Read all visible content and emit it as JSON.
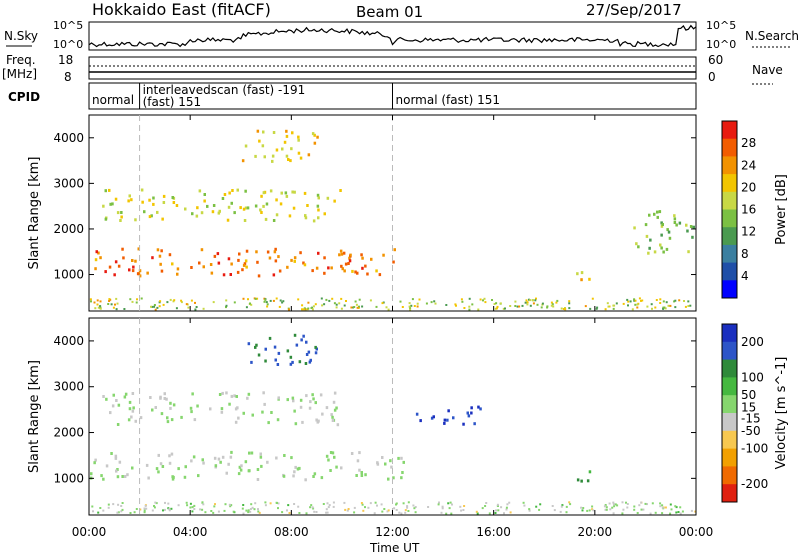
{
  "header": {
    "station": "Hokkaido East (fitACF)",
    "beam": "Beam 01",
    "date": "27/Sep/2017"
  },
  "noise_panel": {
    "left_label": "N.Sky",
    "right_label": "N.Search",
    "left_ticks": [
      "10^5",
      "10^0"
    ],
    "right_ticks": [
      "10^5",
      "10^0"
    ]
  },
  "freq_panel": {
    "left_label": "Freq.",
    "left_unit": "[MHz]",
    "left_ticks": [
      "18",
      "8"
    ],
    "right_label": "Nave",
    "right_ticks": [
      "60",
      "0"
    ]
  },
  "cpid_panel": {
    "label": "CPID",
    "segments": [
      {
        "text": "normal",
        "start": 0.0,
        "end": 2.0
      },
      {
        "text": "interleavedscan (fast) -191",
        "line2": "(fast) 151",
        "start": 2.0,
        "end": 12.0
      },
      {
        "text": "normal (fast) 151",
        "start": 12.0,
        "end": 24.0
      }
    ]
  },
  "x_axis": {
    "label": "Time UT",
    "ticks": [
      "00:00",
      "04:00",
      "08:00",
      "12:00",
      "16:00",
      "20:00",
      "00:00"
    ],
    "range_hours": [
      0,
      24
    ]
  },
  "colors": {
    "power": [
      "#0000ff",
      "#1f4fa8",
      "#3a7fa0",
      "#4a9a50",
      "#7bc043",
      "#c8d845",
      "#f2c500",
      "#f29200",
      "#f25c00",
      "#e81b10"
    ],
    "velocity": [
      "#1a2fbf",
      "#2d55c8",
      "#2f8a3a",
      "#45b840",
      "#86d66e",
      "#c8c8c8",
      "#f7c850",
      "#f2a000",
      "#f06a00",
      "#e02010"
    ]
  },
  "chart_data": [
    {
      "type": "heatmap",
      "title": "",
      "xlabel": "Time UT",
      "ylabel": "Slant Range [km]",
      "xlim": [
        0,
        24
      ],
      "ylim": [
        200,
        4500
      ],
      "yticks": [
        1000,
        2000,
        3000,
        4000
      ],
      "colorbar": {
        "label": "Power [dB]",
        "ticks": [
          4,
          8,
          12,
          16,
          20,
          24,
          28
        ],
        "range": [
          0,
          32
        ]
      },
      "features": [
        {
          "name": "main band",
          "t_start": 0,
          "t_end": 12.5,
          "range_start": 1000,
          "range_end": 1600,
          "value": 26
        },
        {
          "name": "upper echo",
          "t_start": 0.5,
          "t_end": 10,
          "range_start": 2200,
          "range_end": 2900,
          "value": 18
        },
        {
          "name": "high arc",
          "t_start": 6,
          "t_end": 9,
          "range_start": 3500,
          "range_end": 4200,
          "value": 20
        },
        {
          "name": "afternoon patch",
          "t_start": 18.8,
          "t_end": 19.8,
          "range_start": 900,
          "range_end": 1200,
          "value": 20
        },
        {
          "name": "evening band",
          "t_start": 21.5,
          "t_end": 24,
          "range_start": 1500,
          "range_end": 2500,
          "value": 14
        }
      ]
    },
    {
      "type": "heatmap",
      "title": "",
      "xlabel": "Time UT",
      "ylabel": "Slant Range [km]",
      "xlim": [
        0,
        24
      ],
      "ylim": [
        200,
        4500
      ],
      "yticks": [
        1000,
        2000,
        3000,
        4000
      ],
      "colorbar": {
        "label": "Velocity [m s^-1]",
        "ticks": [
          200,
          100,
          50,
          15,
          -15,
          -50,
          -100,
          -200
        ],
        "range": [
          -250,
          250
        ]
      },
      "features": [
        {
          "name": "main band",
          "t_start": 0,
          "t_end": 12.5,
          "range_start": 1000,
          "range_end": 1600,
          "value": 0
        },
        {
          "name": "upper echo",
          "t_start": 0.5,
          "t_end": 10,
          "range_start": 2200,
          "range_end": 2900,
          "value": 0
        },
        {
          "name": "high arc",
          "t_start": 6,
          "t_end": 9,
          "range_start": 3500,
          "range_end": 4200,
          "value": 150
        },
        {
          "name": "mid patch",
          "t_start": 12.5,
          "t_end": 15.5,
          "range_start": 2200,
          "range_end": 2600,
          "value": 200
        },
        {
          "name": "afternoon patch",
          "t_start": 18.8,
          "t_end": 19.8,
          "range_start": 900,
          "range_end": 1200,
          "value": 100
        }
      ]
    }
  ]
}
